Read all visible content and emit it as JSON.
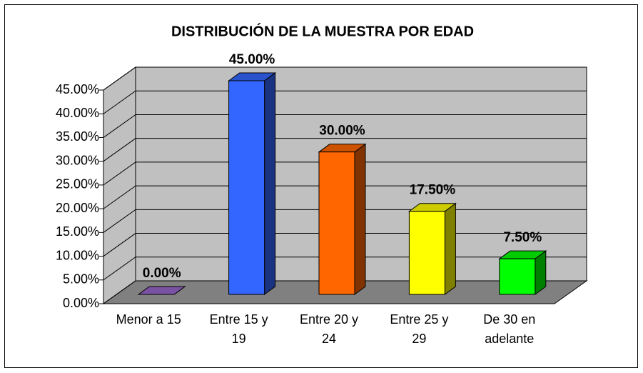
{
  "chart_data": {
    "type": "bar3d",
    "title": "DISTRIBUCIÓN DE LA MUESTRA POR EDAD",
    "categories": [
      "Menor a 15",
      "Entre 15 y 19",
      "Entre 20 y 24",
      "Entre 25 y 29",
      "De 30 en adelante"
    ],
    "values": [
      0,
      45,
      30,
      17.5,
      7.5
    ],
    "value_labels": [
      "0.00%",
      "45.00%",
      "30.00%",
      "17.50%",
      "7.50%"
    ],
    "colors": [
      "#9966cc",
      "#3366ff",
      "#ff6600",
      "#ffff00",
      "#00ff00"
    ],
    "ylim": [
      0,
      45
    ],
    "yticks": [
      {
        "value": 0,
        "label": "0.00%"
      },
      {
        "value": 5,
        "label": "5.00%"
      },
      {
        "value": 10,
        "label": "10.00%"
      },
      {
        "value": 15,
        "label": "15.00%"
      },
      {
        "value": 20,
        "label": "20.00%"
      },
      {
        "value": 25,
        "label": "25.00%"
      },
      {
        "value": 30,
        "label": "30.00%"
      },
      {
        "value": 35,
        "label": "35.00%"
      },
      {
        "value": 40,
        "label": "40.00%"
      },
      {
        "value": 45,
        "label": "45.00%"
      }
    ],
    "grid": true
  }
}
